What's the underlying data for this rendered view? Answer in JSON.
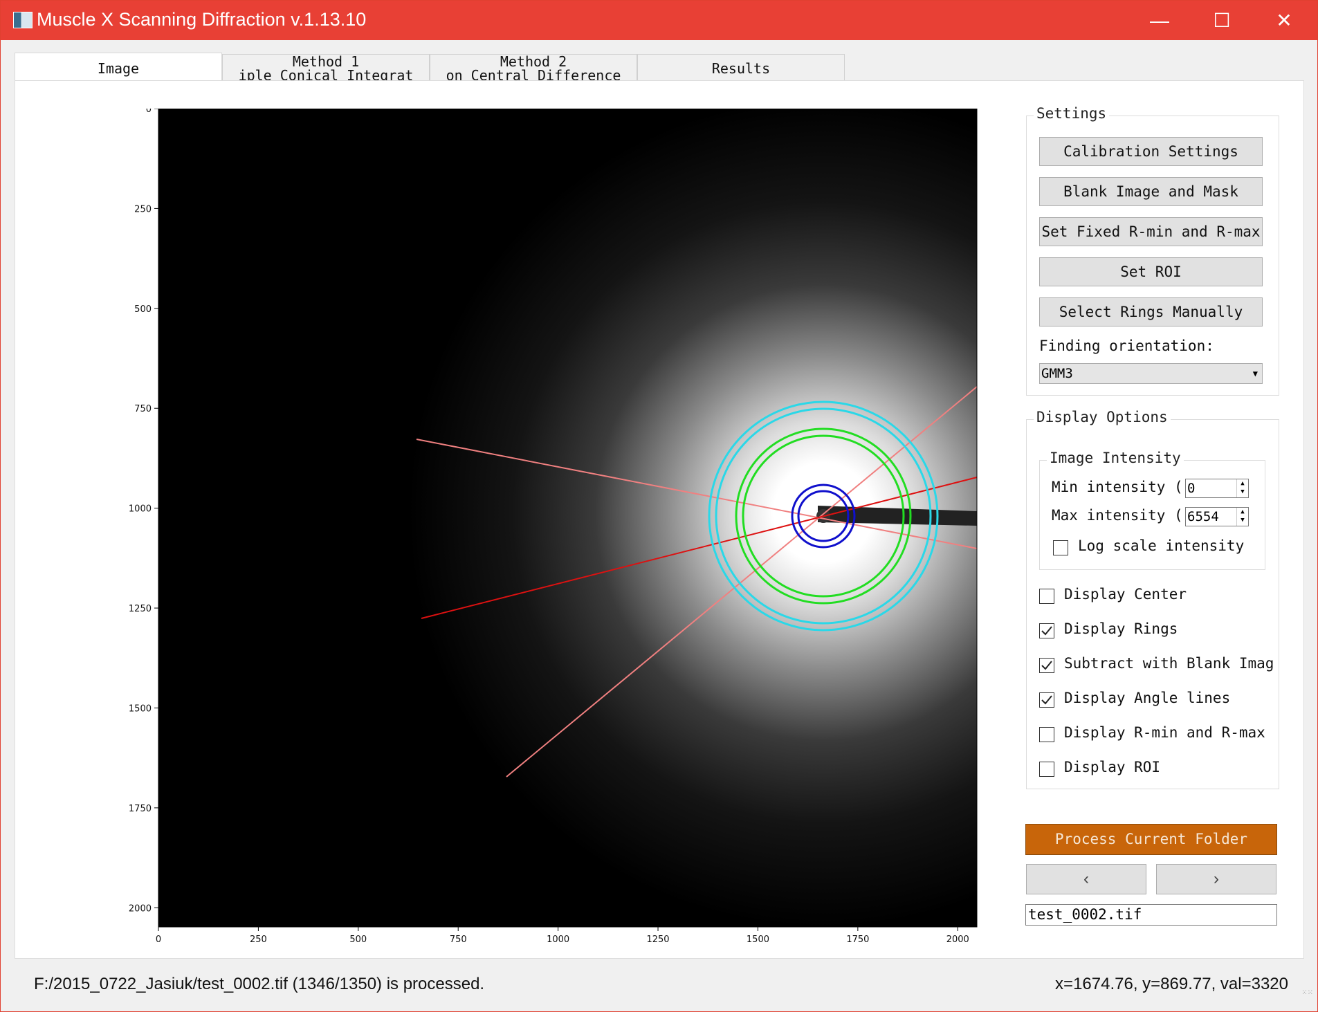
{
  "window": {
    "title": "Muscle X Scanning Diffraction v.1.13.10"
  },
  "tabs": [
    {
      "line1": "Image",
      "line2": ""
    },
    {
      "line1": "Method 1",
      "line2": "iple Conical Integrat"
    },
    {
      "line1": "Method 2",
      "line2": "on Central Difference"
    },
    {
      "line1": "Results",
      "line2": ""
    }
  ],
  "plot": {
    "x_ticks": [
      "0",
      "250",
      "500",
      "750",
      "1000",
      "1250",
      "1500",
      "1750",
      "2000"
    ],
    "y_ticks": [
      "0",
      "250",
      "500",
      "750",
      "1000",
      "1250",
      "1500",
      "1750",
      "2000"
    ]
  },
  "settings": {
    "title": "Settings",
    "buttons": [
      "Calibration Settings",
      "Blank Image and Mask",
      "Set Fixed R-min and R-max",
      "Set ROI",
      "Select Rings Manually"
    ],
    "orientation_label": "Finding orientation:",
    "orientation_value": "GMM3"
  },
  "display_options": {
    "title": "Display Options",
    "image_intensity": {
      "title": "Image Intensity",
      "min_label": "Min intensity ((",
      "min_value": "0",
      "max_label": "Max intensity ((",
      "max_value": "6554",
      "log_label": "Log scale intensity"
    },
    "checks": [
      {
        "label": "Display Center",
        "checked": false
      },
      {
        "label": "Display Rings",
        "checked": true
      },
      {
        "label": "Subtract with Blank Imag",
        "checked": true
      },
      {
        "label": "Display Angle lines",
        "checked": true
      },
      {
        "label": "Display R-min and R-max",
        "checked": false
      },
      {
        "label": "Display ROI",
        "checked": false
      }
    ]
  },
  "actions": {
    "process": "Process Current Folder",
    "prev": "‹",
    "next": "›",
    "filename": "test_0002.tif"
  },
  "status": {
    "left": "F:/2015_0722_Jasiuk/test_0002.tif (1346/1350) is processed.",
    "right": "x=1674.76, y=869.77, val=3320"
  },
  "colors": {
    "titlebar": "#e84035",
    "process_button": "#c8650a",
    "ring_outer": "#2ad8e8",
    "ring_middle": "#22dd22",
    "ring_inner": "#1010cc",
    "angle_main": "#dd1111",
    "angle_side": "#f08080"
  }
}
